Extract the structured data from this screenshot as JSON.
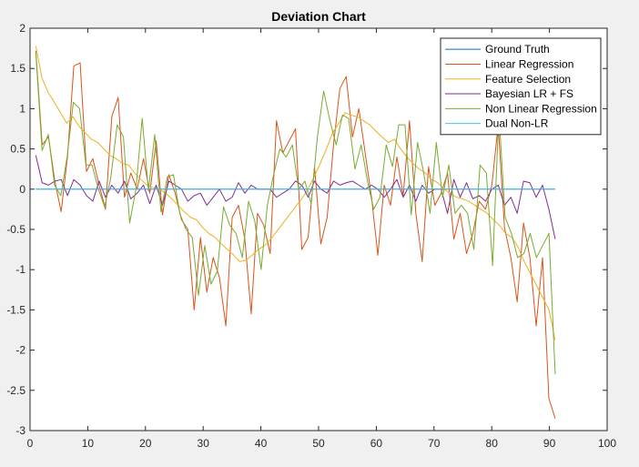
{
  "chart_data": {
    "type": "line",
    "title": "Deviation Chart",
    "xlabel": "",
    "ylabel": "",
    "xlim": [
      0,
      100
    ],
    "ylim": [
      -3,
      2
    ],
    "xticks": [
      0,
      10,
      20,
      30,
      40,
      50,
      60,
      70,
      80,
      90,
      100
    ],
    "yticks": [
      2,
      1.5,
      1,
      0.5,
      0,
      -0.5,
      -1,
      -1.5,
      -2,
      -2.5,
      -3
    ],
    "grid": false,
    "legend_position": "top-right",
    "x_start": 1,
    "series": [
      {
        "name": "Ground Truth",
        "color": "#0072bd",
        "values": [
          0,
          0,
          0,
          0,
          0,
          0,
          0,
          0,
          0,
          0,
          0,
          0,
          0,
          0,
          0,
          0,
          0,
          0,
          0,
          0,
          0,
          0,
          0,
          0,
          0,
          0,
          0,
          0,
          0,
          0,
          0,
          0,
          0,
          0,
          0,
          0,
          0,
          0,
          0,
          0,
          0,
          0,
          0,
          0,
          0,
          0,
          0,
          0,
          0,
          0,
          0,
          0,
          0,
          0,
          0,
          0,
          0,
          0,
          0,
          0,
          0,
          0,
          0,
          0,
          0,
          0,
          0,
          0,
          0,
          0,
          0,
          0,
          0,
          0,
          0,
          0,
          0,
          0,
          0,
          0,
          0,
          0,
          0,
          0,
          0,
          0,
          0,
          0,
          0,
          0,
          0
        ]
      },
      {
        "name": "Linear Regression",
        "color": "#d95319",
        "values": [
          1.72,
          0.55,
          0.65,
          0.1,
          -0.28,
          0.4,
          1.53,
          1.57,
          0.22,
          0.38,
          0.05,
          -0.25,
          0.9,
          1.14,
          -0.1,
          0.2,
          0.0,
          0.38,
          -0.05,
          0.6,
          -0.32,
          0.18,
          -0.05,
          -0.38,
          -0.5,
          -1.5,
          -0.6,
          -1.28,
          -0.85,
          -1.1,
          -1.7,
          -0.35,
          -0.2,
          -0.62,
          -1.55,
          -0.3,
          -0.45,
          -0.8,
          0.85,
          0.45,
          0.6,
          0.75,
          -0.75,
          -0.6,
          0.28,
          -0.68,
          -0.35,
          0.55,
          1.25,
          1.4,
          0.65,
          1.0,
          0.45,
          -0.1,
          -0.82,
          0.05,
          -0.2,
          0.4,
          -0.08,
          0.85,
          -0.3,
          -0.9,
          0.28,
          -0.2,
          -0.05,
          0.2,
          -0.62,
          -0.3,
          -0.8,
          -0.55,
          -0.15,
          -0.25,
          0.05,
          0.8,
          -0.48,
          -0.85,
          -1.4,
          -0.42,
          -0.85,
          -1.7,
          -0.85,
          -2.6,
          -2.85
        ]
      },
      {
        "name": "Feature Selection",
        "color": "#edb120",
        "values": [
          1.78,
          1.38,
          1.2,
          1.08,
          0.95,
          0.82,
          0.9,
          0.78,
          0.7,
          0.62,
          0.58,
          0.5,
          0.42,
          0.38,
          0.32,
          0.3,
          0.2,
          0.12,
          0.05,
          0.02,
          0.0,
          -0.05,
          -0.12,
          -0.2,
          -0.28,
          -0.35,
          -0.38,
          -0.48,
          -0.55,
          -0.6,
          -0.68,
          -0.75,
          -0.82,
          -0.9,
          -0.88,
          -0.82,
          -0.75,
          -0.7,
          -0.62,
          -0.52,
          -0.42,
          -0.32,
          -0.22,
          -0.12,
          0.0,
          0.15,
          0.32,
          0.5,
          0.7,
          0.82,
          0.95,
          0.92,
          0.9,
          0.85,
          0.8,
          0.72,
          0.65,
          0.58,
          0.62,
          0.5,
          0.4,
          0.32,
          0.25,
          0.2,
          0.12,
          0.08,
          0.0,
          -0.05,
          -0.1,
          -0.12,
          -0.15,
          -0.2,
          -0.25,
          -0.3,
          -0.38,
          -0.45,
          -0.55,
          -0.6,
          -0.72,
          -0.9,
          -1.05,
          -1.2,
          -1.35,
          -1.5,
          -1.88
        ]
      },
      {
        "name": "Bayesian LR + FS",
        "color": "#7e2f8e",
        "values": [
          0.42,
          0.08,
          0.05,
          0.1,
          0.12,
          -0.08,
          0.12,
          0.05,
          -0.08,
          -0.15,
          0.1,
          -0.1,
          0.05,
          -0.05,
          0.1,
          -0.12,
          -0.05,
          0.05,
          -0.18,
          0.05,
          -0.2,
          0.1,
          0.05,
          0.0,
          -0.15,
          -0.08,
          -0.05,
          -0.2,
          -0.1,
          0.0,
          -0.15,
          -0.1,
          0.08,
          -0.05,
          0.05,
          0.0,
          0.0,
          0.0,
          -0.1,
          -0.05,
          0.0,
          0.1,
          0.05,
          -0.1,
          0.1,
          0.0,
          -0.05,
          0.1,
          0.05,
          0.08,
          0.1,
          0.05,
          0.0,
          0.05,
          0.0,
          -0.1,
          0.0,
          0.12,
          -0.1,
          0.05,
          -0.15,
          0.05,
          -0.05,
          0.0,
          0.0,
          -0.3,
          0.12,
          -0.1,
          0.08,
          -0.12,
          -0.08,
          -0.15,
          0.0,
          0.05,
          -0.2,
          -0.1,
          -0.3,
          0.1,
          0.08,
          -0.1,
          0.05,
          -0.25,
          -0.62
        ]
      },
      {
        "name": "Non Linear Regression",
        "color": "#77ac30",
        "values": [
          1.7,
          0.48,
          0.68,
          0.05,
          -0.08,
          0.4,
          1.08,
          1.0,
          0.3,
          0.3,
          0.0,
          -0.22,
          0.15,
          0.8,
          0.65,
          -0.42,
          0.0,
          0.88,
          -0.02,
          0.68,
          -0.28,
          0.15,
          0.18,
          -0.3,
          -0.5,
          -0.6,
          -1.32,
          -0.7,
          -1.18,
          -1.02,
          -0.22,
          -0.45,
          -0.55,
          -0.85,
          -0.15,
          -0.4,
          -1.0,
          -0.2,
          0.18,
          0.5,
          0.4,
          0.55,
          0.0,
          0.1,
          -0.18,
          0.65,
          1.22,
          0.85,
          0.55,
          0.92,
          0.88,
          0.25,
          0.55,
          0.1,
          -0.25,
          -0.1,
          0.55,
          0.28,
          0.8,
          0.8,
          -0.32,
          0.58,
          0.2,
          -0.3,
          0.58,
          -0.1,
          0.3,
          -0.3,
          -0.2,
          -0.3,
          -0.75,
          0.3,
          0.2,
          -0.95,
          0.95,
          -0.35,
          -0.55,
          -0.85,
          -0.8,
          -0.55,
          -0.85,
          -0.7,
          -0.55,
          -2.3
        ]
      },
      {
        "name": "Dual Non-LR",
        "color": "#4dbeee",
        "values": [
          0,
          0,
          0,
          0,
          0,
          0,
          0,
          0,
          0,
          0,
          0,
          0,
          0,
          0,
          0,
          0,
          0,
          0,
          0,
          0,
          0,
          0,
          0,
          0,
          0,
          0,
          0,
          0,
          0,
          0,
          0,
          0,
          0,
          0,
          0,
          0,
          0,
          0,
          0,
          0,
          0,
          0,
          0,
          0,
          0,
          0,
          0,
          0,
          0,
          0,
          0,
          0,
          0,
          0,
          0,
          0,
          0,
          0,
          0,
          0,
          0,
          0,
          0,
          0,
          0,
          0,
          0,
          0,
          0,
          0,
          0,
          0,
          0,
          0,
          0,
          0,
          0,
          0,
          0,
          0,
          0,
          0,
          0,
          0,
          0,
          0,
          0,
          0,
          0,
          0,
          0
        ]
      }
    ]
  }
}
